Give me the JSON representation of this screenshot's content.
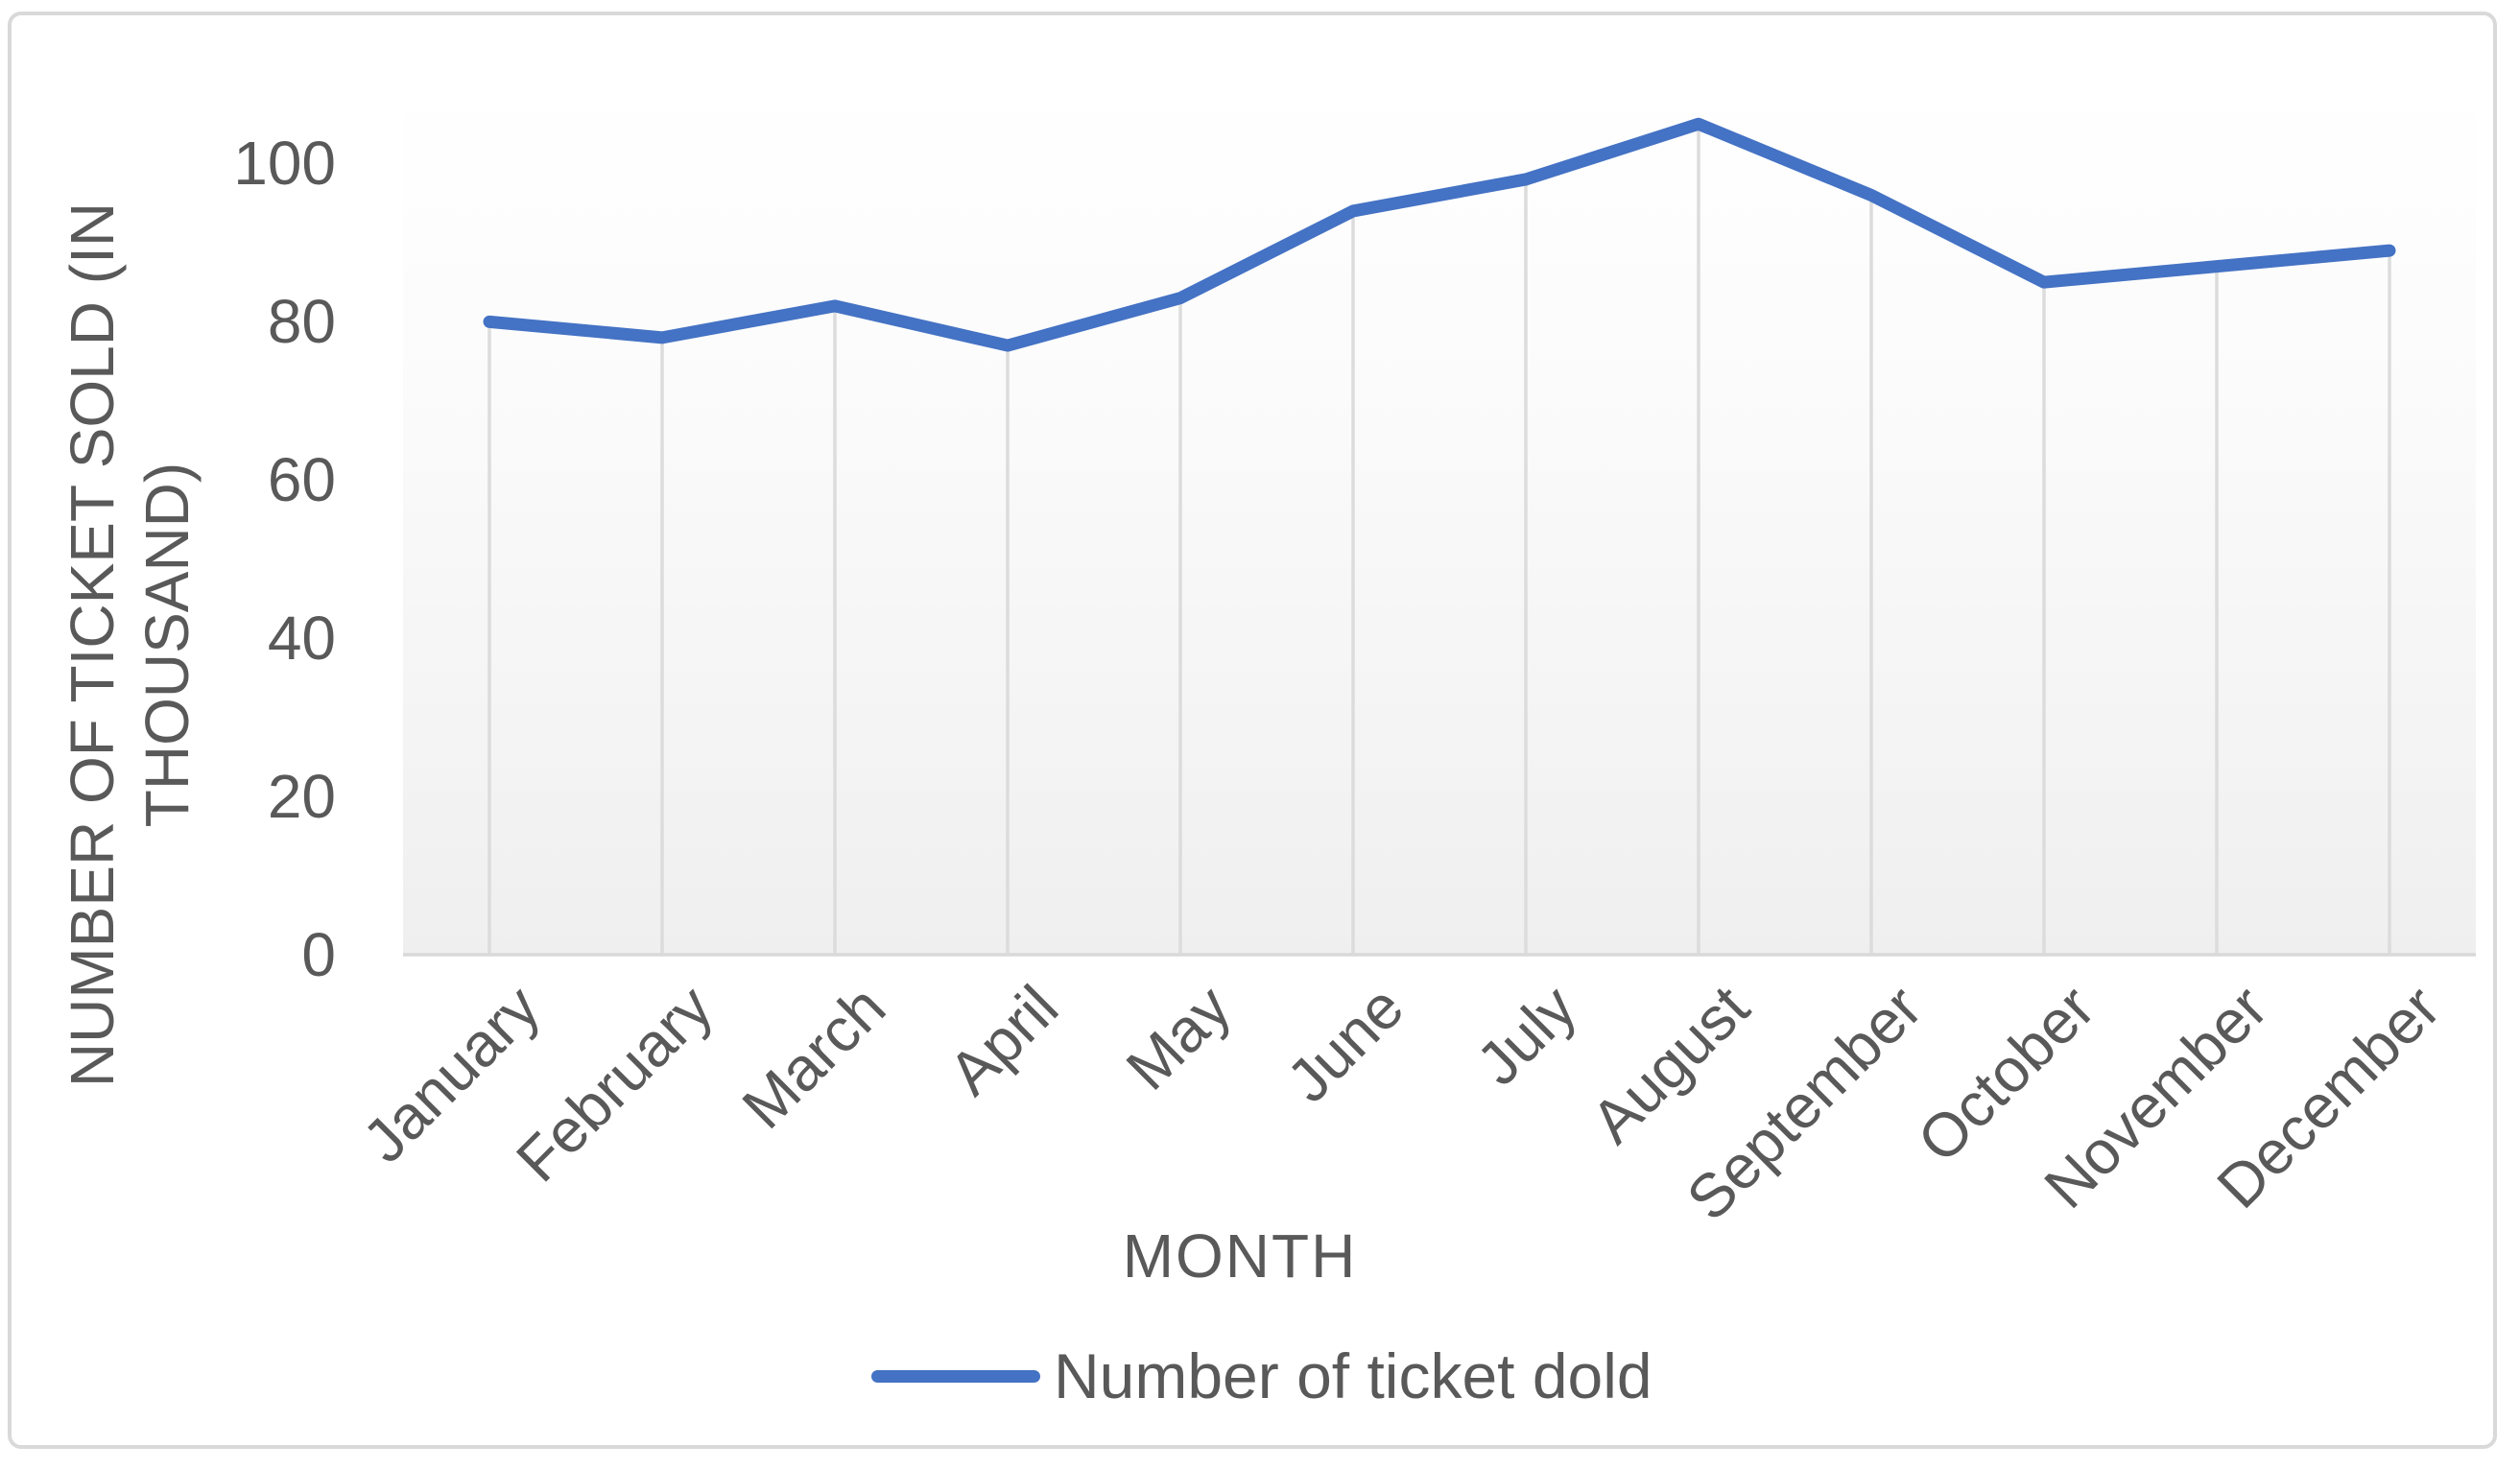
{
  "chart": {
    "y_axis_title_line1": "NUMBER OF TICKET SOLD (IN",
    "y_axis_title_line2": "THOUSAND)",
    "x_axis_title": "MONTH",
    "legend_label": "Number of ticket dold"
  },
  "chart_data": {
    "type": "line",
    "title": "",
    "categories": [
      "January",
      "February",
      "March",
      "April",
      "May",
      "June",
      "July",
      "August",
      "September",
      "October",
      "November",
      "December"
    ],
    "series": [
      {
        "name": "Number of ticket dold",
        "values": [
          80,
          78,
          82,
          77,
          83,
          94,
          98,
          105,
          96,
          85,
          87,
          89
        ]
      }
    ],
    "xlabel": "MONTH",
    "ylabel": "NUMBER OF TICKET SOLD (IN THOUSAND)",
    "yticks": [
      0,
      20,
      40,
      60,
      80,
      100
    ],
    "ylim": [
      0,
      110
    ],
    "grid": "vertical-drop-lines-only",
    "legend_position": "bottom-center",
    "colors": {
      "series": "#4472c4",
      "text": "#595959",
      "drop_line": "#dcdcdc",
      "axis_line": "#d9d9d9",
      "frame_border": "#d9d9d9"
    }
  }
}
